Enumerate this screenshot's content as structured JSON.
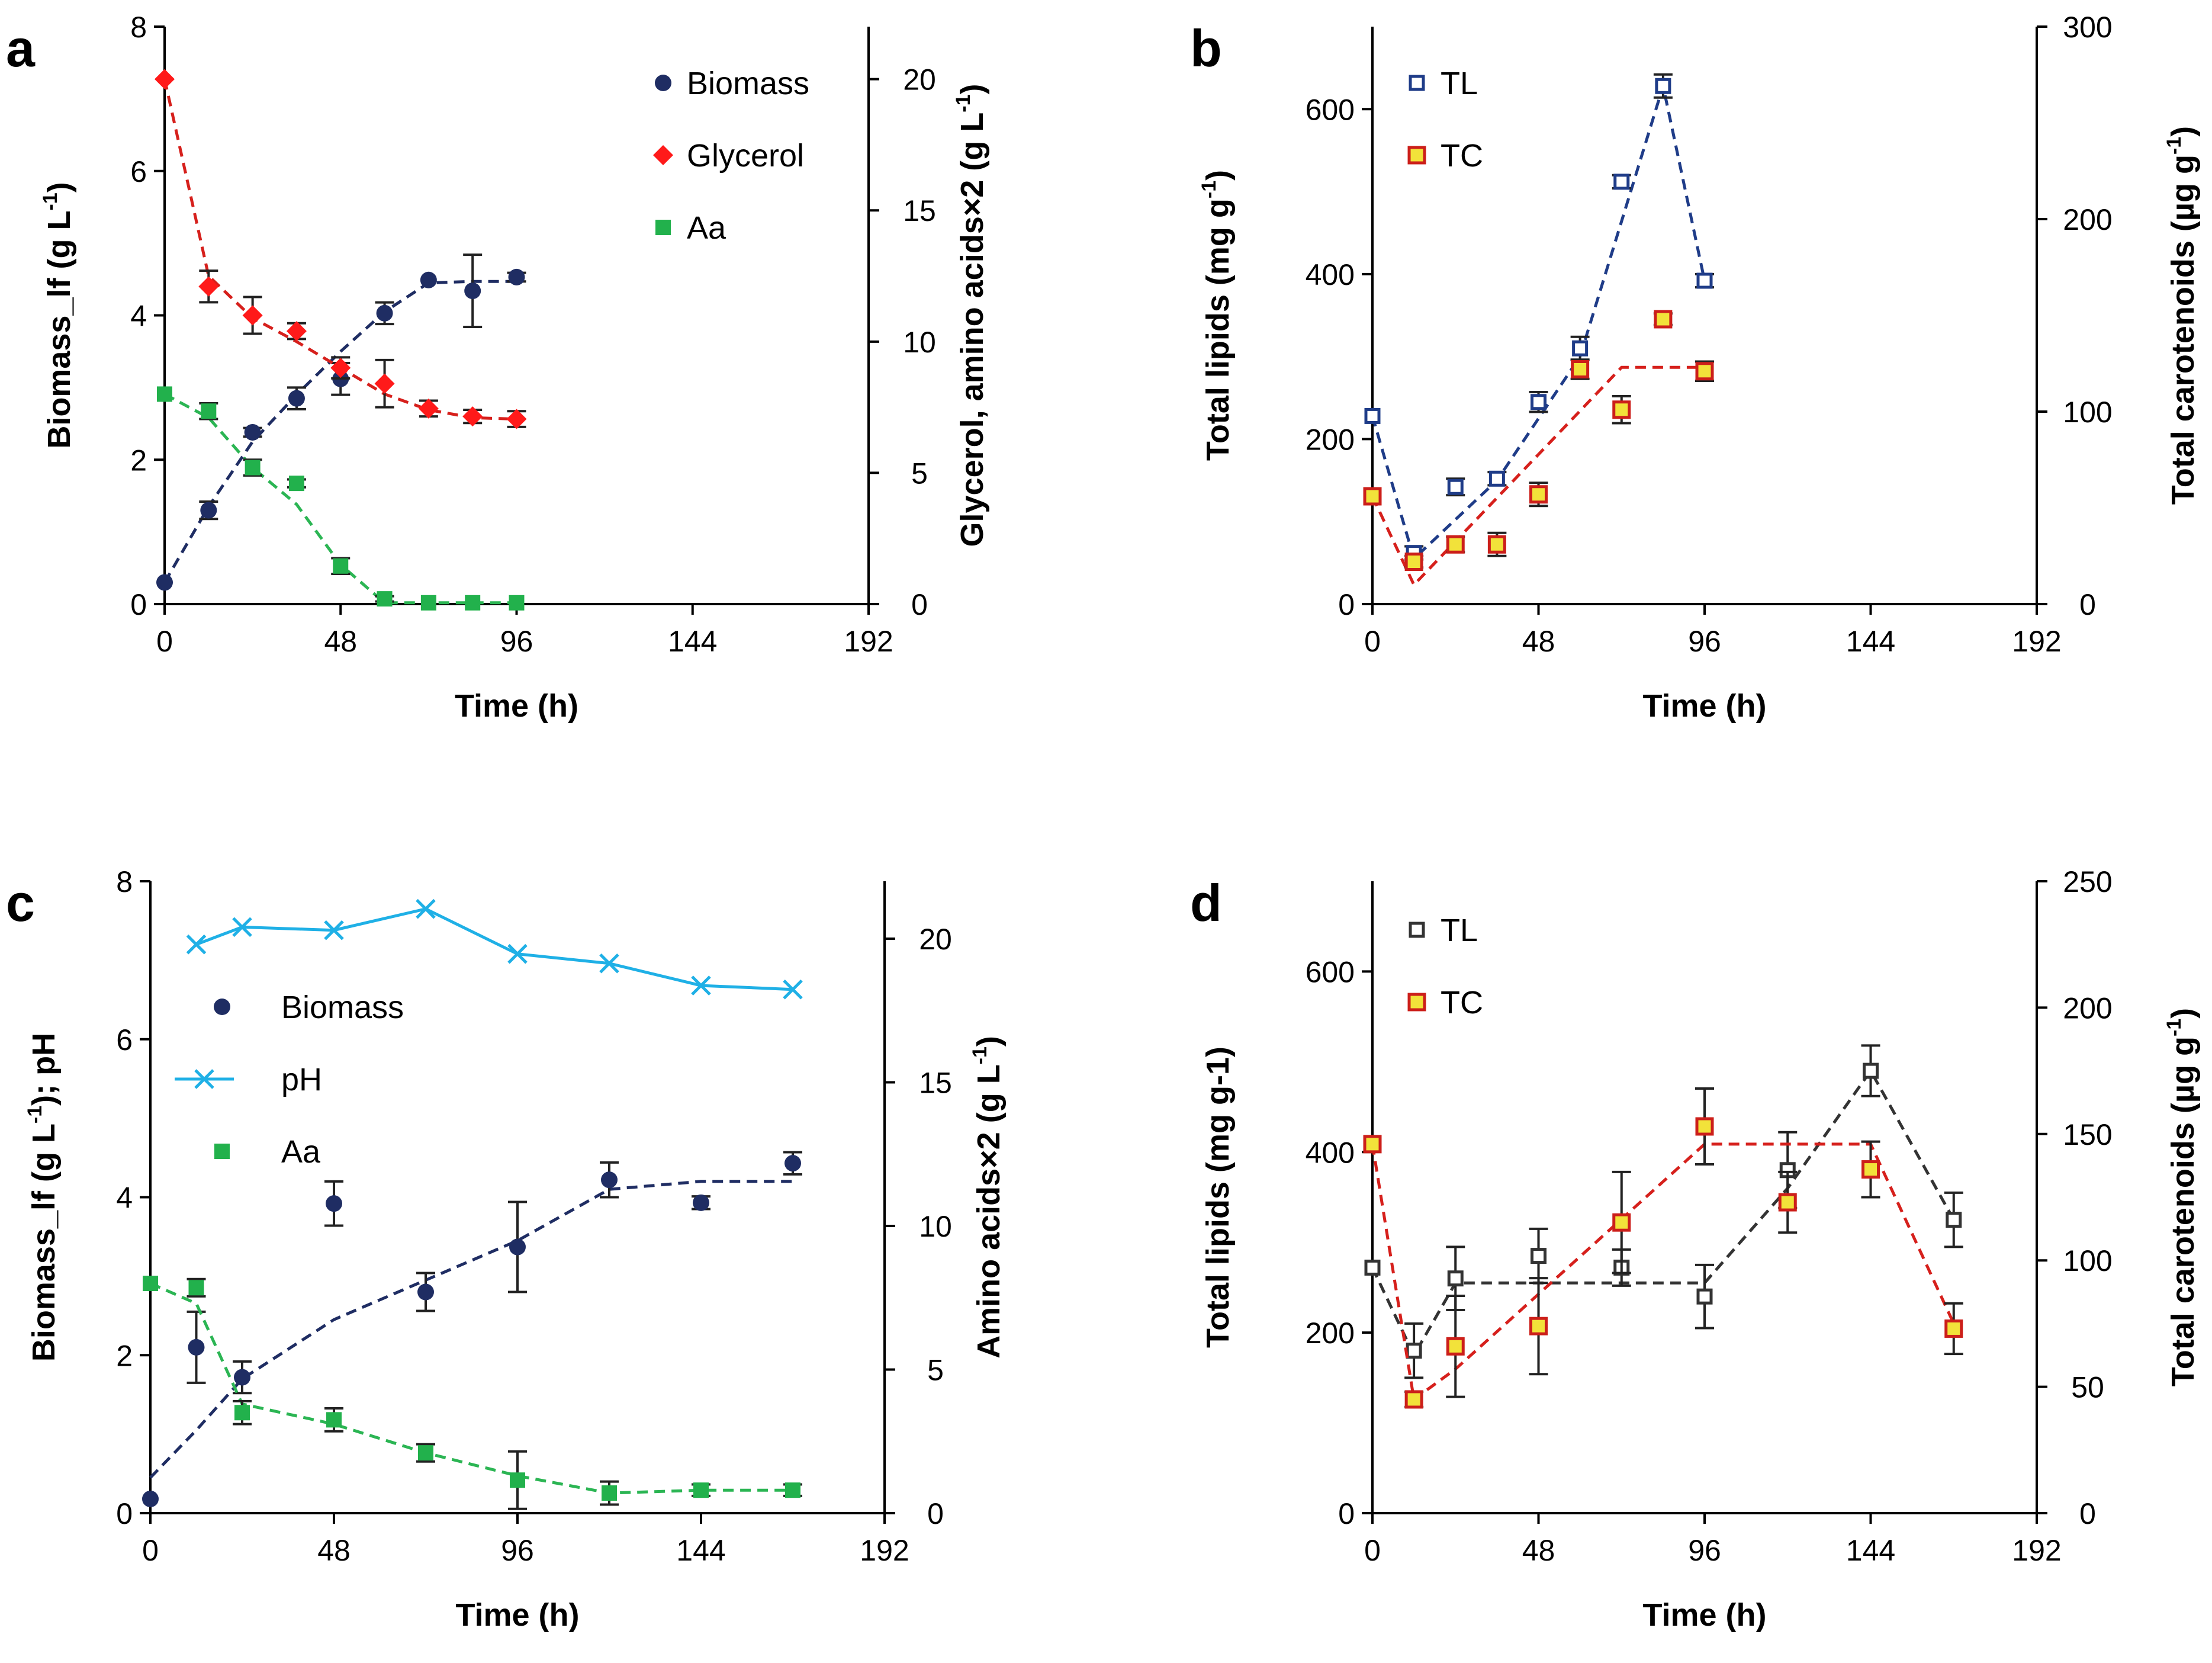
{
  "chart_data": [
    {
      "panel": "a",
      "type": "scatter",
      "xlabel": "Time (h)",
      "ylabel": "Biomass_lf (g L-1)",
      "y2label": "Glycerol, amino acids×2 (g L-1)",
      "xlim": [
        0,
        192
      ],
      "ylim": [
        0,
        8
      ],
      "y2lim": [
        0,
        22
      ],
      "x_ticks": [
        0,
        48,
        96,
        144,
        192
      ],
      "y_ticks": [
        0,
        2,
        4,
        6,
        8
      ],
      "y2_ticks": [
        0,
        5,
        10,
        15,
        20
      ],
      "legend_position": "top-right",
      "series": [
        {
          "name": "Biomass",
          "axis": "left",
          "marker": "circle",
          "color": "#1f2d63",
          "x": [
            0,
            12,
            24,
            36,
            48,
            60,
            72,
            84,
            96
          ],
          "y": [
            0.3,
            1.3,
            2.38,
            2.85,
            3.12,
            4.03,
            4.49,
            4.34,
            4.53
          ],
          "err": [
            0.0,
            0.12,
            0.06,
            0.15,
            0.22,
            0.15,
            0.0,
            0.5,
            0.06
          ],
          "fit": {
            "x": [
              0,
              12,
              24,
              36,
              48,
              60,
              72,
              84,
              96
            ],
            "y": [
              0.3,
              1.35,
              2.25,
              2.9,
              3.5,
              4.05,
              4.45,
              4.47,
              4.47
            ]
          }
        },
        {
          "name": "Glycerol",
          "axis": "right",
          "marker": "diamond",
          "color": "#ff1a1a",
          "x": [
            0,
            12,
            24,
            36,
            48,
            60,
            72,
            84,
            96
          ],
          "y": [
            20.0,
            12.1,
            11.0,
            10.4,
            9.0,
            8.4,
            7.45,
            7.15,
            7.05
          ],
          "err": [
            0.0,
            0.6,
            0.7,
            0.3,
            0.4,
            0.9,
            0.3,
            0.25,
            0.3
          ],
          "fit": {
            "x": [
              0,
              12,
              24,
              36,
              48,
              60,
              72,
              84,
              96
            ],
            "y": [
              20.0,
              12.5,
              10.9,
              10.0,
              9.0,
              8.0,
              7.4,
              7.1,
              7.05
            ]
          }
        },
        {
          "name": "Aa",
          "axis": "right",
          "marker": "square",
          "color": "#22b14c",
          "x": [
            0,
            12,
            24,
            36,
            48,
            60,
            72,
            84,
            96
          ],
          "y": [
            8.0,
            7.35,
            5.2,
            4.6,
            1.45,
            0.2,
            0.05,
            0.05,
            0.05
          ],
          "err": [
            0.0,
            0.3,
            0.3,
            0.15,
            0.3,
            0.1,
            0.0,
            0.0,
            0.0
          ],
          "fit": {
            "x": [
              0,
              12,
              24,
              36,
              48,
              60,
              72,
              84,
              96
            ],
            "y": [
              8.0,
              7.1,
              5.2,
              3.8,
              1.5,
              0.05,
              0.05,
              0.05,
              0.05
            ]
          }
        }
      ]
    },
    {
      "panel": "b",
      "type": "scatter",
      "xlabel": "Time (h)",
      "ylabel": "Total lipids (mg g-1)",
      "y2label": "Total carotenoids (µg g-1)",
      "xlim": [
        0,
        192
      ],
      "ylim": [
        0,
        700
      ],
      "y2lim": [
        0,
        300
      ],
      "x_ticks": [
        0,
        48,
        96,
        144,
        192
      ],
      "y_ticks": [
        0,
        200,
        400,
        600
      ],
      "y2_ticks": [
        0,
        100,
        200,
        300
      ],
      "legend_position": "top-left",
      "series": [
        {
          "name": "TL",
          "axis": "left",
          "marker": "open-square",
          "color": "#1f3c88",
          "x": [
            0,
            12,
            24,
            36,
            48,
            60,
            72,
            84,
            96
          ],
          "y": [
            228,
            62,
            142,
            152,
            245,
            310,
            512,
            628,
            392
          ],
          "err": [
            0,
            8,
            10,
            8,
            12,
            14,
            8,
            14,
            8
          ],
          "fit": {
            "x": [
              0,
              12,
              36,
              60,
              84,
              96
            ],
            "y": [
              228,
              55,
              150,
              300,
              628,
              392
            ]
          }
        },
        {
          "name": "TC",
          "axis": "right",
          "marker": "square",
          "color": "#cc1f1a",
          "x": [
            0,
            12,
            24,
            36,
            48,
            60,
            72,
            84,
            96
          ],
          "y": [
            56,
            22,
            31,
            31,
            57,
            122,
            101,
            148,
            121
          ],
          "err": [
            0,
            3,
            4,
            6,
            6,
            5,
            7,
            3,
            5
          ],
          "fit": {
            "x": [
              0,
              12,
              72,
              96
            ],
            "y": [
              56,
              10,
              123,
              123
            ]
          }
        }
      ]
    },
    {
      "panel": "c",
      "type": "scatter",
      "xlabel": "Time (h)",
      "ylabel": "Biomass_lf (g L-1); pH",
      "y2label": "Amino acids×2 (g L-1)",
      "xlim": [
        0,
        192
      ],
      "ylim": [
        0,
        8
      ],
      "y2lim": [
        0,
        22
      ],
      "x_ticks": [
        0,
        48,
        96,
        144,
        192
      ],
      "y_ticks": [
        0,
        2,
        4,
        6,
        8
      ],
      "y2_ticks": [
        0,
        5,
        10,
        15,
        20
      ],
      "legend_position": "middle-left",
      "series": [
        {
          "name": "Biomass",
          "axis": "left",
          "marker": "circle",
          "color": "#1f2d63",
          "x": [
            0,
            12,
            24,
            48,
            72,
            96,
            120,
            144,
            168
          ],
          "y": [
            0.18,
            2.1,
            1.72,
            3.92,
            2.8,
            3.37,
            4.22,
            3.93,
            4.43
          ],
          "err": [
            0.0,
            0.45,
            0.2,
            0.28,
            0.24,
            0.57,
            0.22,
            0.08,
            0.14
          ],
          "fit": {
            "x": [
              0,
              12,
              24,
              48,
              72,
              96,
              120,
              144,
              168
            ],
            "y": [
              0.45,
              1.05,
              1.7,
              2.45,
              2.95,
              3.45,
              4.1,
              4.2,
              4.2
            ]
          }
        },
        {
          "name": "pH",
          "axis": "left",
          "marker": "x",
          "color": "#1fb0e6",
          "line": "solid",
          "x": [
            12,
            24,
            48,
            72,
            96,
            120,
            144,
            168
          ],
          "y": [
            7.2,
            7.42,
            7.38,
            7.65,
            7.08,
            6.96,
            6.68,
            6.63
          ]
        },
        {
          "name": "Aa",
          "axis": "right",
          "marker": "square",
          "color": "#22b14c",
          "x": [
            0,
            12,
            24,
            48,
            72,
            96,
            120,
            144,
            168
          ],
          "y": [
            8.0,
            7.85,
            3.5,
            3.25,
            2.1,
            1.15,
            0.7,
            0.8,
            0.8
          ],
          "err": [
            0.0,
            0.3,
            0.4,
            0.4,
            0.3,
            1.0,
            0.4,
            0.2,
            0.2
          ],
          "fit": {
            "x": [
              0,
              12,
              24,
              48,
              72,
              96,
              120,
              144,
              168
            ],
            "y": [
              8.0,
              7.3,
              3.8,
              3.1,
              2.1,
              1.3,
              0.7,
              0.8,
              0.8
            ]
          }
        }
      ]
    },
    {
      "panel": "d",
      "type": "scatter",
      "xlabel": "Time (h)",
      "ylabel": "Total lipids (mg g-1)",
      "y2label": "Total carotenoids (µg g-1)",
      "xlim": [
        0,
        192
      ],
      "ylim": [
        0,
        700
      ],
      "y2lim": [
        0,
        250
      ],
      "x_ticks": [
        0,
        48,
        96,
        144,
        192
      ],
      "y_ticks": [
        0,
        200,
        400,
        600
      ],
      "y2_ticks": [
        0,
        50,
        100,
        150,
        200,
        250
      ],
      "legend_position": "top-left",
      "series": [
        {
          "name": "TL",
          "axis": "left",
          "marker": "open-square",
          "color": "#333333",
          "x": [
            0,
            12,
            24,
            48,
            72,
            96,
            120,
            144,
            168
          ],
          "y": [
            272,
            180,
            260,
            285,
            272,
            240,
            380,
            490,
            325
          ],
          "err": [
            0,
            30,
            35,
            30,
            20,
            35,
            42,
            28,
            30
          ],
          "fit": {
            "x": [
              0,
              12,
              24,
              96,
              120,
              144,
              168
            ],
            "y": [
              272,
              175,
              255,
              255,
              360,
              490,
              325
            ]
          }
        },
        {
          "name": "TC",
          "axis": "right",
          "marker": "square",
          "color": "#cc1f1a",
          "x": [
            0,
            12,
            24,
            48,
            72,
            96,
            120,
            144,
            168
          ],
          "y": [
            146,
            45,
            66,
            74,
            115,
            153,
            123,
            136,
            73
          ],
          "err": [
            0,
            3,
            20,
            19,
            20,
            15,
            12,
            11,
            10
          ],
          "fit": {
            "x": [
              0,
              12,
              24,
              96,
              144,
              168
            ],
            "y": [
              146,
              45,
              57,
              146,
              146,
              75
            ]
          }
        }
      ]
    }
  ],
  "panels": {
    "a": {
      "letter": "a",
      "xlabel": "Time (h)",
      "ylabel": "Biomass_lf (g L",
      "ylabel_sup": "-1",
      "ylabel_tail": ")",
      "y2label": "Glycerol, amino acids×2 (g L",
      "y2label_sup": "-1",
      "y2label_tail": ")",
      "legend": [
        "Biomass",
        "Glycerol",
        "Aa"
      ]
    },
    "b": {
      "letter": "b",
      "xlabel": "Time (h)",
      "ylabel": "Total lipids (mg g",
      "ylabel_sup": "-1",
      "ylabel_tail": ")",
      "y2label": "Total carotenoids (µg g",
      "y2label_sup": "-1",
      "y2label_tail": ")",
      "legend": [
        "TL",
        "TC"
      ]
    },
    "c": {
      "letter": "c",
      "xlabel": "Time (h)",
      "ylabel": "Biomass_lf (g L",
      "ylabel_sup": "-1",
      "ylabel_tail": "); pH",
      "y2label": "Amino acids×2 (g L",
      "y2label_sup": "-1",
      "y2label_tail": ")",
      "legend": [
        "Biomass",
        "pH",
        "Aa"
      ]
    },
    "d": {
      "letter": "d",
      "xlabel": "Time (h)",
      "ylabel": "Total lipids (mg g-1)",
      "ylabel_sup": "",
      "ylabel_tail": "",
      "y2label": "Total carotenoids (µg g",
      "y2label_sup": "-1",
      "y2label_tail": ")",
      "legend": [
        "TL",
        "TC"
      ]
    }
  }
}
